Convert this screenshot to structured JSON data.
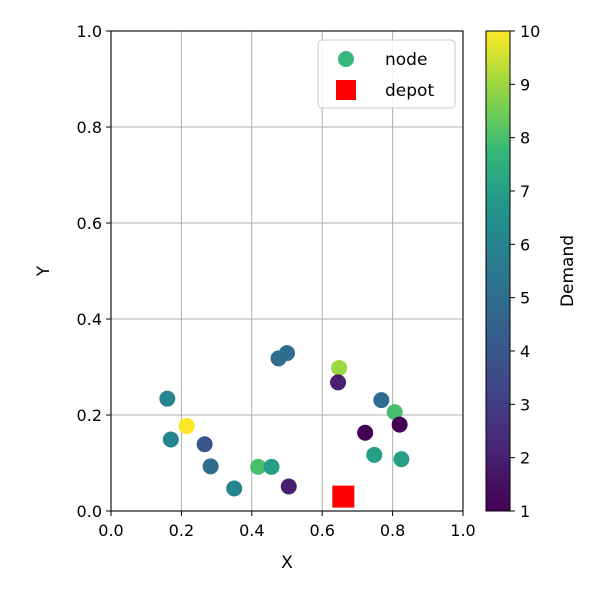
{
  "chart_data": {
    "type": "scatter",
    "title": "",
    "xlabel": "X",
    "ylabel": "Y",
    "xlim": [
      0.0,
      1.0
    ],
    "ylim": [
      0.0,
      1.0
    ],
    "xticks": [
      "0.0",
      "0.2",
      "0.4",
      "0.6",
      "0.8",
      "1.0"
    ],
    "yticks": [
      "0.0",
      "0.2",
      "0.4",
      "0.6",
      "0.8",
      "1.0"
    ],
    "grid": true,
    "legend": {
      "placement": "top-right",
      "entries": [
        {
          "label": "node",
          "marker": "circle",
          "color": "#35b779"
        },
        {
          "label": "depot",
          "marker": "square",
          "color": "#ff0000"
        }
      ]
    },
    "colorbar": {
      "label": "Demand",
      "range": [
        1,
        10
      ],
      "ticks": [
        "1",
        "2",
        "3",
        "4",
        "5",
        "6",
        "7",
        "8",
        "9",
        "10"
      ],
      "colormap": "viridis"
    },
    "depot": {
      "x": 0.66,
      "y": 0.03
    },
    "nodes": [
      {
        "x": 0.16,
        "y": 0.234,
        "demand": 6
      },
      {
        "x": 0.17,
        "y": 0.149,
        "demand": 6
      },
      {
        "x": 0.215,
        "y": 0.177,
        "demand": 10
      },
      {
        "x": 0.266,
        "y": 0.139,
        "demand": 4
      },
      {
        "x": 0.283,
        "y": 0.093,
        "demand": 5
      },
      {
        "x": 0.35,
        "y": 0.047,
        "demand": 6
      },
      {
        "x": 0.418,
        "y": 0.092,
        "demand": 8
      },
      {
        "x": 0.456,
        "y": 0.092,
        "demand": 7
      },
      {
        "x": 0.505,
        "y": 0.051,
        "demand": 2
      },
      {
        "x": 0.476,
        "y": 0.318,
        "demand": 5
      },
      {
        "x": 0.5,
        "y": 0.329,
        "demand": 5
      },
      {
        "x": 0.648,
        "y": 0.298,
        "demand": 9
      },
      {
        "x": 0.645,
        "y": 0.268,
        "demand": 2
      },
      {
        "x": 0.722,
        "y": 0.163,
        "demand": 1
      },
      {
        "x": 0.748,
        "y": 0.117,
        "demand": 7
      },
      {
        "x": 0.768,
        "y": 0.231,
        "demand": 5
      },
      {
        "x": 0.806,
        "y": 0.206,
        "demand": 8
      },
      {
        "x": 0.82,
        "y": 0.18,
        "demand": 1
      },
      {
        "x": 0.825,
        "y": 0.108,
        "demand": 7
      }
    ]
  }
}
